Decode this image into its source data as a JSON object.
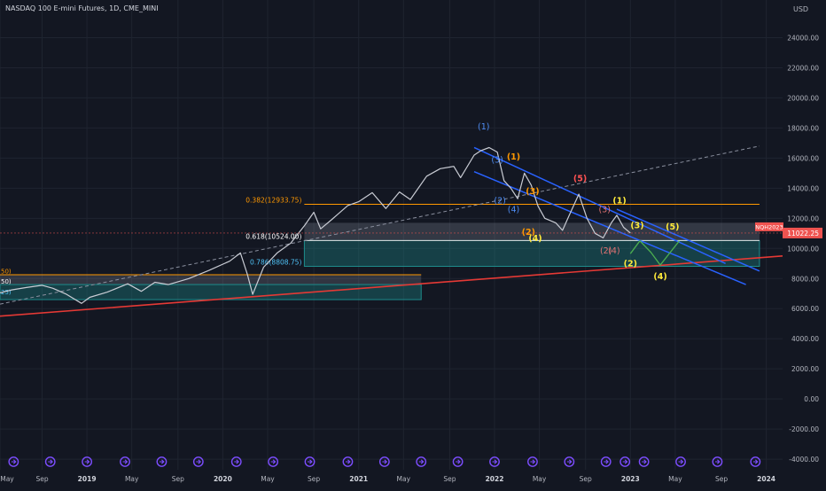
{
  "header": {
    "symbol_title": "NASDAQ 100 E-mini Futures, 1D, CME_MINI",
    "currency": "USD"
  },
  "price_tag": {
    "symbol": "NQH2023",
    "value": "11022.25"
  },
  "colors": {
    "background": "#131722",
    "grid": "#1f2430",
    "axis_text": "#b2b5be",
    "price": "#c9ccd4",
    "channel": "#2962ff",
    "trend_red": "#e53935",
    "fib_orange": "#ff9800",
    "zone_teal": "#1e8c8c",
    "zone_grey": "#8a8f9e",
    "wave_blue": "#4f8ef7",
    "wave_orange": "#ff9800",
    "wave_yellow": "#ffeb3b",
    "wave_red": "#ff5252",
    "wave_pink": "#e57373",
    "forecast": "#4caf50",
    "event_icon": "#7c4dff"
  },
  "chart_data": {
    "type": "line",
    "y_axis": {
      "ylim": [
        -4700,
        26500
      ],
      "ticks": [
        24000,
        22000,
        20000,
        18000,
        16000,
        14000,
        12000,
        10000,
        8000,
        6000,
        4000,
        2000,
        0,
        -2000,
        -4000
      ],
      "tick_labels": [
        "24000.00",
        "22000.00",
        "20000.00",
        "18000.00",
        "16000.00",
        "14000.00",
        "12000.00",
        "10000.00",
        "8000.00",
        "6000.00",
        "4000.00",
        "2000.00",
        "0.00",
        "-2000.00",
        "-4000.00"
      ]
    },
    "x_axis": {
      "xlim": [
        2018.36,
        2024.12
      ],
      "ticks": [
        2018.36,
        2018.67,
        2019.0,
        2019.33,
        2019.67,
        2020.0,
        2020.33,
        2020.67,
        2021.0,
        2021.33,
        2021.67,
        2022.0,
        2022.33,
        2022.67,
        2023.0,
        2023.33,
        2023.67,
        2024.0
      ],
      "tick_labels": [
        "May",
        "Sep",
        "2019",
        "May",
        "Sep",
        "2020",
        "May",
        "Sep",
        "2021",
        "May",
        "Sep",
        "2022",
        "May",
        "Sep",
        "2023",
        "May",
        "Sep",
        "2024"
      ],
      "bold_ticks": [
        "2019",
        "2020",
        "2021",
        "2022",
        "2023",
        "2024"
      ]
    },
    "series": [
      {
        "values": [
          [
            2018.36,
            7050
          ],
          [
            2018.45,
            7250
          ],
          [
            2018.55,
            7400
          ],
          [
            2018.67,
            7550
          ],
          [
            2018.75,
            7350
          ],
          [
            2018.85,
            6950
          ],
          [
            2018.96,
            6350
          ],
          [
            2019.02,
            6750
          ],
          [
            2019.15,
            7100
          ],
          [
            2019.3,
            7650
          ],
          [
            2019.4,
            7150
          ],
          [
            2019.5,
            7750
          ],
          [
            2019.6,
            7600
          ],
          [
            2019.75,
            8000
          ],
          [
            2019.9,
            8550
          ],
          [
            2020.05,
            9150
          ],
          [
            2020.13,
            9700
          ],
          [
            2020.18,
            8300
          ],
          [
            2020.22,
            6950
          ],
          [
            2020.3,
            8750
          ],
          [
            2020.4,
            9700
          ],
          [
            2020.5,
            10350
          ],
          [
            2020.6,
            11500
          ],
          [
            2020.67,
            12400
          ],
          [
            2020.72,
            11300
          ],
          [
            2020.8,
            11900
          ],
          [
            2020.92,
            12850
          ],
          [
            2021.0,
            13100
          ],
          [
            2021.1,
            13700
          ],
          [
            2021.2,
            12650
          ],
          [
            2021.3,
            13750
          ],
          [
            2021.38,
            13250
          ],
          [
            2021.5,
            14800
          ],
          [
            2021.6,
            15300
          ],
          [
            2021.7,
            15450
          ],
          [
            2021.75,
            14700
          ],
          [
            2021.85,
            16200
          ],
          [
            2021.9,
            16500
          ],
          [
            2021.96,
            16700
          ],
          [
            2022.02,
            16400
          ],
          [
            2022.07,
            14500
          ],
          [
            2022.12,
            14000
          ],
          [
            2022.17,
            13300
          ],
          [
            2022.22,
            15000
          ],
          [
            2022.27,
            14200
          ],
          [
            2022.32,
            12800
          ],
          [
            2022.37,
            12000
          ],
          [
            2022.45,
            11700
          ],
          [
            2022.5,
            11200
          ],
          [
            2022.55,
            12200
          ],
          [
            2022.62,
            13600
          ],
          [
            2022.68,
            12000
          ],
          [
            2022.74,
            11000
          ],
          [
            2022.8,
            10700
          ],
          [
            2022.86,
            11700
          ],
          [
            2022.9,
            12200
          ],
          [
            2022.95,
            11400
          ],
          [
            2023.0,
            11022.25
          ]
        ]
      }
    ],
    "channel": {
      "upper": [
        [
          2021.85,
          16700
        ],
        [
          2023.7,
          9000
        ]
      ],
      "lower": [
        [
          2021.85,
          15100
        ],
        [
          2023.85,
          7600
        ]
      ],
      "middle": [
        [
          2022.9,
          12600
        ],
        [
          2023.95,
          8500
        ]
      ]
    },
    "trend_lines": {
      "red": [
        [
          2018.36,
          5500
        ],
        [
          2024.12,
          9500
        ]
      ],
      "dashed": [
        [
          2018.36,
          6300
        ],
        [
          2023.95,
          16800
        ]
      ]
    },
    "fib_levels": [
      {
        "label": "0.382(12933.75)",
        "value": 12933.75
      },
      {
        "label": "0.618(10524.00)",
        "value": 10524.0
      },
      {
        "label": "0.786(8808.75)",
        "value": 8808.75
      }
    ],
    "zones": {
      "fib_grey": [
        10524,
        11700
      ],
      "fib_teal": [
        8808.75,
        10524
      ],
      "left_grey": [
        7600,
        8250
      ],
      "left_teal": [
        6600,
        7600
      ]
    },
    "left_edge_labels": [
      {
        "label": "50)",
        "value": 8350
      },
      {
        "label": "50)",
        "value": 7650
      },
      {
        "label": "25)",
        "value": 6950
      }
    ],
    "forecast_path": [
      [
        2023.0,
        9650
      ],
      [
        2023.07,
        10500
      ],
      [
        2023.15,
        9750
      ],
      [
        2023.22,
        8900
      ],
      [
        2023.36,
        10500
      ]
    ],
    "wave_labels": [
      {
        "text": "(1)",
        "x": 2021.92,
        "y": 17900,
        "color": "wave_blue"
      },
      {
        "text": "(3)",
        "x": 2022.02,
        "y": 15700,
        "color": "wave_blue"
      },
      {
        "text": "(2)",
        "x": 2022.04,
        "y": 13000,
        "color": "wave_blue"
      },
      {
        "text": "(4)",
        "x": 2022.14,
        "y": 12400,
        "color": "wave_blue"
      },
      {
        "text": "(1)",
        "x": 2022.14,
        "y": 15900,
        "color": "wave_orange"
      },
      {
        "text": "(3)",
        "x": 2022.28,
        "y": 13600,
        "color": "wave_orange"
      },
      {
        "text": "(2)",
        "x": 2022.25,
        "y": 10900,
        "color": "wave_orange"
      },
      {
        "text": "(4)",
        "x": 2022.3,
        "y": 10500,
        "color": "wave_yellow"
      },
      {
        "text": "(5)",
        "x": 2022.63,
        "y": 14450,
        "color": "wave_red"
      },
      {
        "text": "(3)",
        "x": 2022.81,
        "y": 12400,
        "color": "wave_pink"
      },
      {
        "text": "(2)",
        "x": 2022.82,
        "y": 9650,
        "color": "wave_pink"
      },
      {
        "text": "(4)",
        "x": 2022.88,
        "y": 9650,
        "color": "wave_pink"
      },
      {
        "text": "(1)",
        "x": 2022.92,
        "y": 13000,
        "color": "wave_yellow"
      },
      {
        "text": "(3)",
        "x": 2023.05,
        "y": 11350,
        "color": "wave_yellow"
      },
      {
        "text": "(5)",
        "x": 2023.31,
        "y": 11250,
        "color": "wave_yellow"
      },
      {
        "text": "(2)",
        "x": 2023.0,
        "y": 8800,
        "color": "wave_yellow"
      },
      {
        "text": "(4)",
        "x": 2023.22,
        "y": 7950,
        "color": "wave_yellow"
      }
    ],
    "event_markers": [
      2018.46,
      2018.73,
      2019.0,
      2019.28,
      2019.55,
      2019.82,
      2020.1,
      2020.37,
      2020.64,
      2020.92,
      2021.19,
      2021.46,
      2021.73,
      2022.0,
      2022.28,
      2022.55,
      2022.82,
      2022.96,
      2023.1,
      2023.37,
      2023.64,
      2023.92
    ]
  }
}
